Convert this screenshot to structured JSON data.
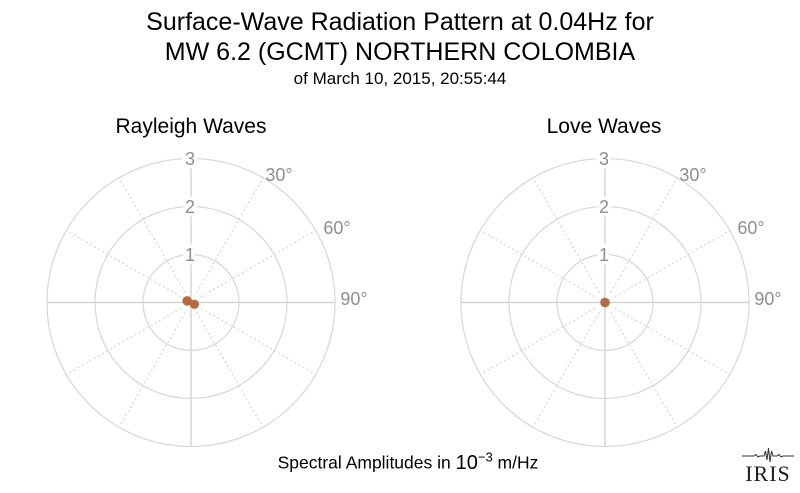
{
  "header": {
    "title_line1": "Surface-Wave Radiation Pattern at 0.04Hz for",
    "title_line2": "MW 6.2 (GCMT) NORTHERN COLOMBIA",
    "subtitle": "of March 10, 2015, 20:55:44"
  },
  "footer": {
    "caption_prefix": "Spectral Amplitudes in ",
    "caption_base": "10",
    "caption_exponent": "−3",
    "caption_suffix": " m/Hz",
    "logo_text": "IRIS"
  },
  "colors": {
    "pattern_fill": "#b96a41",
    "grid_circle": "#d9d9d9",
    "grid_cross": "#cfcfcf",
    "grid_dotted": "#d2d2d2",
    "tick_label": "#8e8e8e",
    "title_text": "#000000",
    "logo_text": "#1f1f1f"
  },
  "chart_data": [
    {
      "type": "polar_radiation",
      "title": "Rayleigh Waves",
      "r_ticks": [
        "1",
        "2",
        "3"
      ],
      "r_max": 3,
      "theta_tick_labels": [
        "30°",
        "60°",
        "90°"
      ],
      "theta_grid_step_deg": 30,
      "units": "10⁻³ m/Hz",
      "max_amplitude": 0.18,
      "pattern_shape": "two tiny overlapping lobes at origin",
      "lobes": [
        {
          "dx": -0.079,
          "dy": -0.033,
          "r": 0.1
        },
        {
          "dx": 0.071,
          "dy": 0.037,
          "r": 0.096
        }
      ]
    },
    {
      "type": "polar_radiation",
      "title": "Love Waves",
      "r_ticks": [
        "1",
        "2",
        "3"
      ],
      "r_max": 3,
      "theta_tick_labels": [
        "30°",
        "60°",
        "90°"
      ],
      "theta_grid_step_deg": 30,
      "units": "10⁻³ m/Hz",
      "max_amplitude": 0.1,
      "pattern_shape": "tiny dot at origin",
      "lobes": [
        {
          "dx": 0,
          "dy": 0,
          "r": 0.1
        }
      ]
    }
  ]
}
